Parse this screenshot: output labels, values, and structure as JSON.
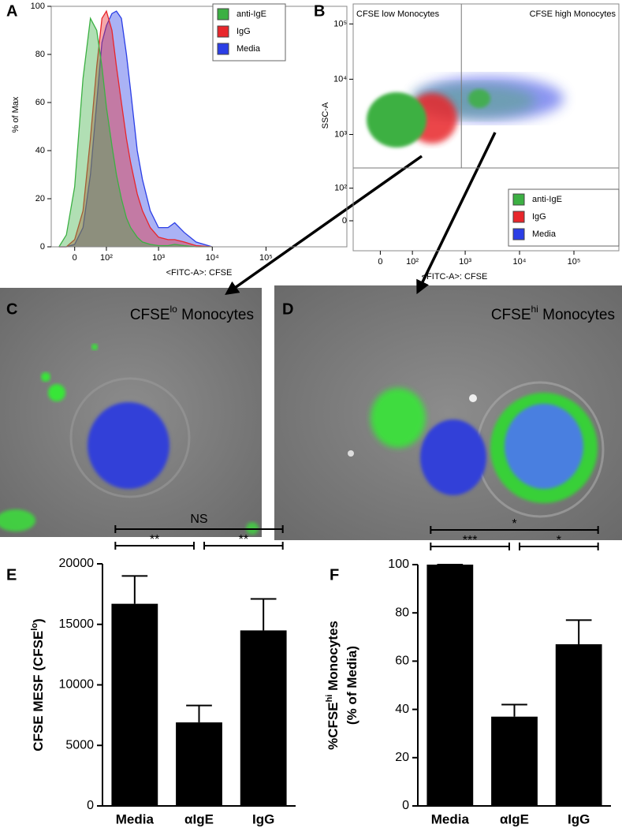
{
  "chart_data": [
    {
      "type": "line",
      "panel_label": "A",
      "xlabel": "<FITC-A>: CFSE",
      "ylabel": "% of Max",
      "xscale": "biexponential",
      "xlim": [
        -65,
        3200000
      ],
      "ylim": [
        0,
        100
      ],
      "xticks": [
        0,
        {
          "value": 100,
          "label": "10²"
        },
        {
          "value": 1000,
          "label": "10³"
        },
        {
          "value": 10000,
          "label": "10⁴"
        },
        {
          "value": 100000,
          "label": "10⁵"
        }
      ],
      "yticks": [
        0,
        20,
        40,
        60,
        80,
        100
      ],
      "x": [
        -40,
        -20,
        0,
        20,
        40,
        60,
        80,
        100,
        130,
        160,
        200,
        250,
        300,
        400,
        500,
        700,
        1000,
        1500,
        2000,
        3000,
        5000,
        10000
      ],
      "series": [
        {
          "name": "anti-IgE",
          "color": "#3cb043",
          "values": [
            0,
            5,
            25,
            70,
            95,
            90,
            75,
            58,
            42,
            30,
            20,
            12,
            8,
            4,
            2,
            1,
            0.5,
            0.5,
            1,
            0.5,
            0,
            0
          ]
        },
        {
          "name": "IgG",
          "color": "#e8262b",
          "values": [
            0,
            0,
            3,
            15,
            45,
            75,
            95,
            98,
            90,
            75,
            60,
            45,
            35,
            22,
            15,
            8,
            4,
            3,
            3,
            2,
            0.5,
            0
          ]
        },
        {
          "name": "Media",
          "color": "#2b3ee6",
          "values": [
            0,
            0,
            1,
            8,
            30,
            60,
            85,
            92,
            97,
            98,
            95,
            80,
            65,
            40,
            28,
            15,
            8,
            8,
            10,
            6,
            2,
            0
          ]
        }
      ],
      "legend": "upper right"
    },
    {
      "type": "scatter",
      "panel_label": "B",
      "xlabel": "<FITC-A>: CFSE",
      "ylabel": "SSC-A",
      "xscale": "biexponential",
      "yscale": "biexponential",
      "xlim": [
        -78,
        670000
      ],
      "ylim": [
        -88,
        230000
      ],
      "xticks": [
        0,
        {
          "value": 100,
          "label": "10²"
        },
        {
          "value": 1000,
          "label": "10³"
        },
        {
          "value": 10000,
          "label": "10⁴"
        },
        {
          "value": 100000,
          "label": "10⁵"
        }
      ],
      "yticks": [
        0,
        {
          "value": 100,
          "label": "10²"
        },
        {
          "value": 1000,
          "label": "10³"
        },
        {
          "value": 10000,
          "label": "10⁴"
        },
        {
          "value": 100000,
          "label": "10⁵"
        }
      ],
      "gates": {
        "x": 850,
        "y": 245
      },
      "gate_labels": [
        "CFSE low Monocytes",
        "CFSE high Monocytes"
      ],
      "series": [
        {
          "name": "anti-IgE",
          "color": "#3cb043"
        },
        {
          "name": "IgG",
          "color": "#e8262b"
        },
        {
          "name": "Media",
          "color": "#2b3ee6"
        }
      ],
      "legend": "lower right"
    },
    {
      "type": "bar",
      "panel_label": "E",
      "ylabel": [
        [
          "CFSE MESF (CFSE",
          "lo",
          ")"
        ]
      ],
      "categories": [
        "Media",
        "αIgE",
        "IgG"
      ],
      "values": [
        16700,
        6900,
        14500
      ],
      "errors": [
        2300,
        1400,
        2600
      ],
      "color": "#000000",
      "ylim": [
        0,
        20000
      ],
      "yticks": [
        0,
        5000,
        10000,
        15000,
        20000
      ],
      "significance": [
        {
          "pair": [
            "Media",
            "αIgE"
          ],
          "label": "**"
        },
        {
          "pair": [
            "αIgE",
            "IgG"
          ],
          "label": "**"
        },
        {
          "pair": [
            "Media",
            "IgG"
          ],
          "label": "NS"
        }
      ]
    },
    {
      "type": "bar",
      "panel_label": "F",
      "ylabel": [
        [
          "%CFSE",
          "hi",
          " Monocytes"
        ],
        [
          "(% of Media)"
        ]
      ],
      "categories": [
        "Media",
        "αIgE",
        "IgG"
      ],
      "values": [
        100,
        37,
        67
      ],
      "errors": [
        0,
        5,
        10
      ],
      "color": "#000000",
      "ylim": [
        0,
        100
      ],
      "yticks": [
        0,
        20,
        40,
        60,
        80,
        100
      ],
      "significance": [
        {
          "pair": [
            "Media",
            "αIgE"
          ],
          "label": "***"
        },
        {
          "pair": [
            "αIgE",
            "IgG"
          ],
          "label": "*"
        },
        {
          "pair": [
            "Media",
            "IgG"
          ],
          "label": "*"
        }
      ]
    }
  ],
  "images": [
    {
      "panel_label": "C",
      "title": [
        "CFSE",
        "lo",
        " Monocytes"
      ]
    },
    {
      "panel_label": "D",
      "title": [
        "CFSE",
        "hi",
        " Monocytes"
      ]
    }
  ]
}
